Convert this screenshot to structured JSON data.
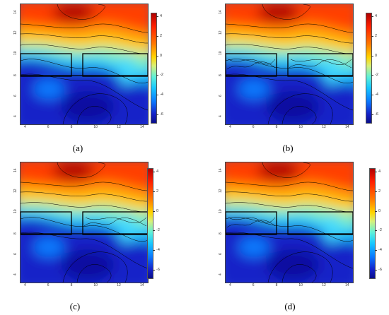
{
  "panels": [
    {
      "id": "a",
      "caption": "(a)",
      "variant": "plain"
    },
    {
      "id": "b",
      "caption": "(b)",
      "variant": "detail"
    },
    {
      "id": "c",
      "caption": "(c)",
      "variant": "right-detail"
    },
    {
      "id": "d",
      "caption": "(d)",
      "variant": "left-detail"
    }
  ],
  "x_ticks": [
    "4",
    "6",
    "8",
    "10",
    "12",
    "14"
  ],
  "y_ticks": [
    "4",
    "6",
    "8",
    "10",
    "12",
    "14"
  ],
  "colorbar_ticks": [
    "4",
    "2",
    "0",
    "-2",
    "-4",
    "-6"
  ],
  "colors": {
    "max": "#b00000",
    "high": "#ff4000",
    "mid": "#ffd400",
    "low": "#18c8ff",
    "min": "#1421c8",
    "contour": "#000000"
  }
}
